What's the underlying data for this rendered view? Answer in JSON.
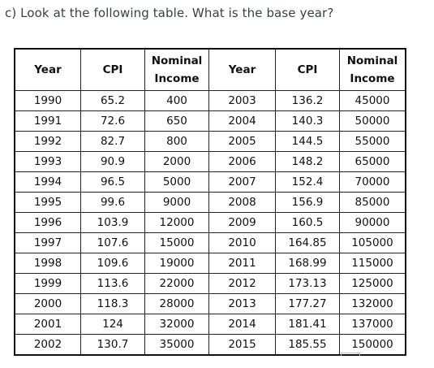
{
  "question": "c) Look at the following table. What is the base year?",
  "table": {
    "headers": [
      "Year",
      "CPI",
      "Nominal Income",
      "Year",
      "CPI",
      "Nominal Income"
    ],
    "rows": [
      [
        "1990",
        "65.2",
        "400",
        "2003",
        "136.2",
        "45000"
      ],
      [
        "1991",
        "72.6",
        "650",
        "2004",
        "140.3",
        "50000"
      ],
      [
        "1992",
        "82.7",
        "800",
        "2005",
        "144.5",
        "55000"
      ],
      [
        "1993",
        "90.9",
        "2000",
        "2006",
        "148.2",
        "65000"
      ],
      [
        "1994",
        "96.5",
        "5000",
        "2007",
        "152.4",
        "70000"
      ],
      [
        "1995",
        "99.6",
        "9000",
        "2008",
        "156.9",
        "85000"
      ],
      [
        "1996",
        "103.9",
        "12000",
        "2009",
        "160.5",
        "90000"
      ],
      [
        "1997",
        "107.6",
        "15000",
        "2010",
        "164.85",
        "105000"
      ],
      [
        "1998",
        "109.6",
        "19000",
        "2011",
        "168.99",
        "115000"
      ],
      [
        "1999",
        "113.6",
        "22000",
        "2012",
        "173.13",
        "125000"
      ],
      [
        "2000",
        "118.3",
        "28000",
        "2013",
        "177.27",
        "132000"
      ],
      [
        "2001",
        "124",
        "32000",
        "2014",
        "181.41",
        "137000"
      ],
      [
        "2002",
        "130.7",
        "35000",
        "2015",
        "185.55",
        "150000"
      ]
    ]
  }
}
